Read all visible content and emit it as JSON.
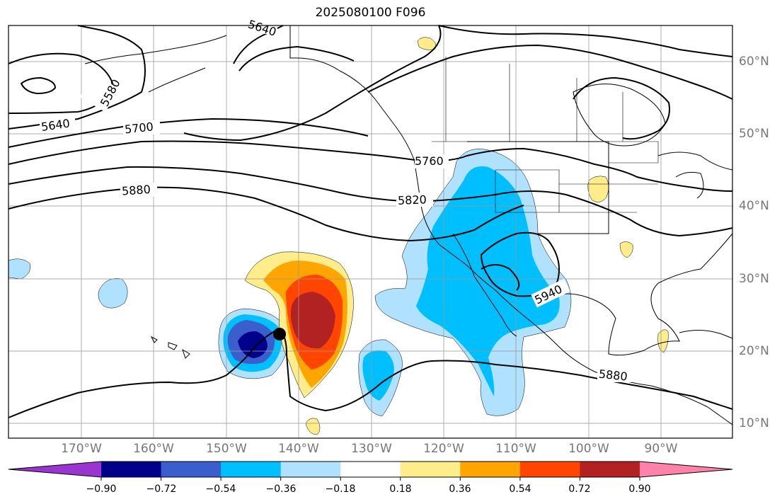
{
  "title": "2025080100 F096",
  "lon_labels": [
    "170°W",
    "160°W",
    "150°W",
    "140°W",
    "130°W",
    "120°W",
    "110°W",
    "100°W",
    "90°W"
  ],
  "lat_labels": [
    "60°N",
    "50°N",
    "40°N",
    "30°N",
    "20°N",
    "10°N"
  ],
  "contour_labels": {
    "c5580": "5580",
    "c5640": "5640",
    "c5640_top": "5640",
    "c5700": "5700",
    "c5760": "5760",
    "c5820": "5820",
    "c5880_left": "5880",
    "c5880_right": "5880",
    "c5940": "5940"
  },
  "colorbar": {
    "ticks": [
      "−0.90",
      "−0.72",
      "−0.54",
      "−0.36",
      "−0.18",
      "0.18",
      "0.36",
      "0.54",
      "0.72",
      "0.90"
    ],
    "colors": [
      "#9a36cf",
      "#00008b",
      "#3a5fcd",
      "#00bfff",
      "#b0e2ff",
      "#ffffff",
      "#ffec8b",
      "#ffa500",
      "#ff4500",
      "#b22222",
      "#ff82ab"
    ]
  },
  "colors": {
    "blue_dark": "#00008b",
    "blue_mid": "#3a5fcd",
    "blue_light": "#00bfff",
    "blue_pale": "#b0e2ff",
    "yellow": "#ffec8b",
    "orange": "#ffa500",
    "red_orange": "#ff4500",
    "dark_red": "#b22222"
  }
}
